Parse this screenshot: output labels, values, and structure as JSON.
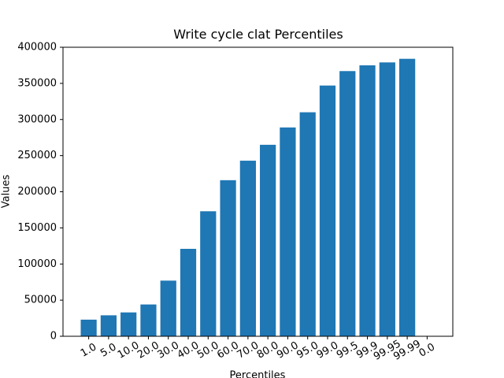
{
  "chart_data": {
    "type": "bar",
    "title": "Write cycle clat Percentiles",
    "x_label": "Percentiles",
    "y_label": "Values",
    "categories": [
      "1.0",
      "5.0",
      "10.0",
      "20.0",
      "30.0",
      "40.0",
      "50.0",
      "60.0",
      "70.0",
      "80.0",
      "90.0",
      "95.0",
      "99.0",
      "99.5",
      "99.9",
      "99.95",
      "99.99",
      "0.0"
    ],
    "values": [
      23000,
      29000,
      33000,
      44000,
      77000,
      121000,
      173000,
      216000,
      243000,
      265000,
      289000,
      310000,
      347000,
      367000,
      375000,
      379000,
      384000,
      0
    ],
    "color": "#1f77b4",
    "ylim": [
      0,
      400000
    ],
    "yticks": [
      0,
      50000,
      100000,
      150000,
      200000,
      250000,
      300000,
      350000,
      400000
    ],
    "grid": false
  }
}
